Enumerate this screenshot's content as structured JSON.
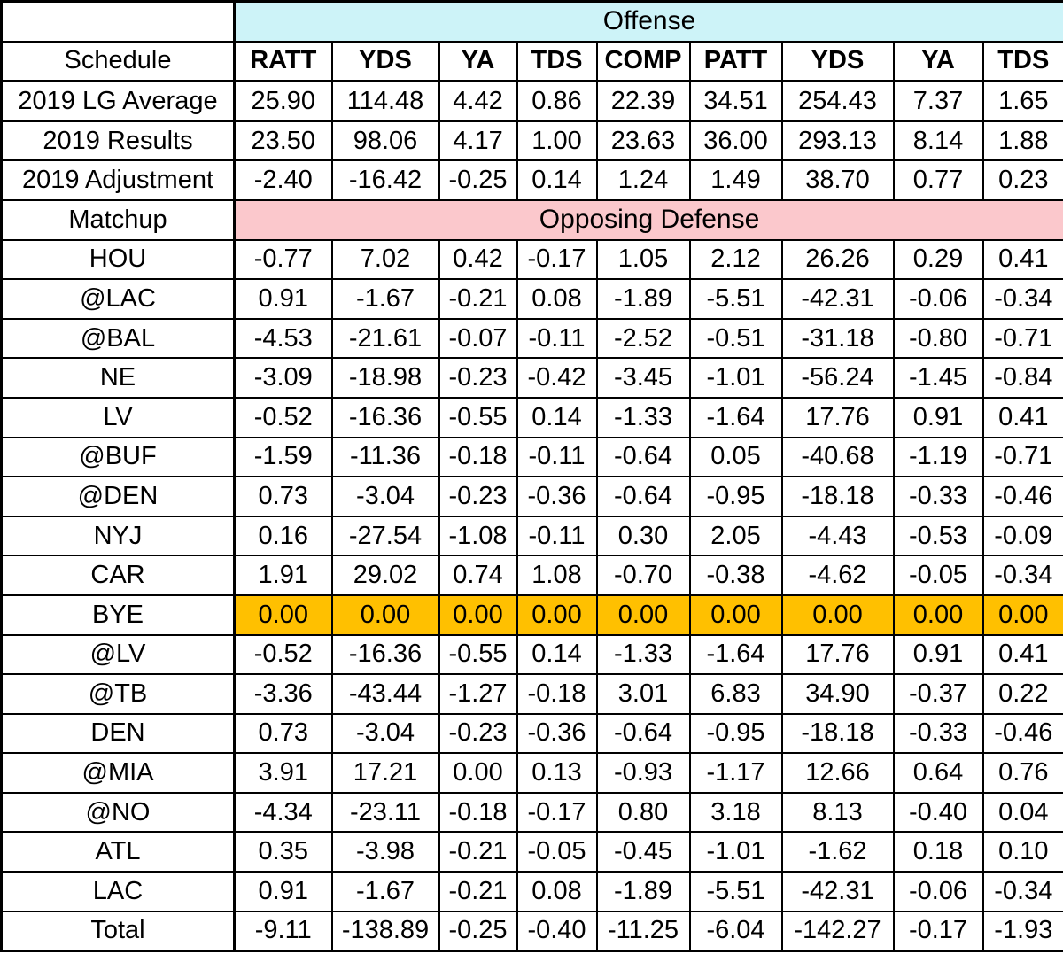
{
  "chart_data": {
    "type": "table",
    "title": "Offense",
    "corner_label": "Schedule",
    "column_headers": [
      "RATT",
      "YDS",
      "YA",
      "TDS",
      "COMP",
      "PATT",
      "YDS",
      "YA",
      "TDS"
    ],
    "baseline_rows": [
      {
        "label": "2019 LG Average",
        "values": [
          "25.90",
          "114.48",
          "4.42",
          "0.86",
          "22.39",
          "34.51",
          "254.43",
          "7.37",
          "1.65"
        ]
      },
      {
        "label": "2019 Results",
        "values": [
          "23.50",
          "98.06",
          "4.17",
          "1.00",
          "23.63",
          "36.00",
          "293.13",
          "8.14",
          "1.88"
        ]
      },
      {
        "label": "2019 Adjustment",
        "values": [
          "-2.40",
          "-16.42",
          "-0.25",
          "0.14",
          "1.24",
          "1.49",
          "38.70",
          "0.77",
          "0.23"
        ]
      }
    ],
    "section_label": "Matchup",
    "section_header": "Opposing Defense",
    "matchup_rows": [
      {
        "label": "HOU",
        "values": [
          "-0.77",
          "7.02",
          "0.42",
          "-0.17",
          "1.05",
          "2.12",
          "26.26",
          "0.29",
          "0.41"
        ]
      },
      {
        "label": "@LAC",
        "values": [
          "0.91",
          "-1.67",
          "-0.21",
          "0.08",
          "-1.89",
          "-5.51",
          "-42.31",
          "-0.06",
          "-0.34"
        ]
      },
      {
        "label": "@BAL",
        "values": [
          "-4.53",
          "-21.61",
          "-0.07",
          "-0.11",
          "-2.52",
          "-0.51",
          "-31.18",
          "-0.80",
          "-0.71"
        ]
      },
      {
        "label": "NE",
        "values": [
          "-3.09",
          "-18.98",
          "-0.23",
          "-0.42",
          "-3.45",
          "-1.01",
          "-56.24",
          "-1.45",
          "-0.84"
        ]
      },
      {
        "label": "LV",
        "values": [
          "-0.52",
          "-16.36",
          "-0.55",
          "0.14",
          "-1.33",
          "-1.64",
          "17.76",
          "0.91",
          "0.41"
        ]
      },
      {
        "label": "@BUF",
        "values": [
          "-1.59",
          "-11.36",
          "-0.18",
          "-0.11",
          "-0.64",
          "0.05",
          "-40.68",
          "-1.19",
          "-0.71"
        ]
      },
      {
        "label": "@DEN",
        "values": [
          "0.73",
          "-3.04",
          "-0.23",
          "-0.36",
          "-0.64",
          "-0.95",
          "-18.18",
          "-0.33",
          "-0.46"
        ]
      },
      {
        "label": "NYJ",
        "values": [
          "0.16",
          "-27.54",
          "-1.08",
          "-0.11",
          "0.30",
          "2.05",
          "-4.43",
          "-0.53",
          "-0.09"
        ]
      },
      {
        "label": "CAR",
        "values": [
          "1.91",
          "29.02",
          "0.74",
          "1.08",
          "-0.70",
          "-0.38",
          "-4.62",
          "-0.05",
          "-0.34"
        ]
      },
      {
        "label": "BYE",
        "highlight": true,
        "values": [
          "0.00",
          "0.00",
          "0.00",
          "0.00",
          "0.00",
          "0.00",
          "0.00",
          "0.00",
          "0.00"
        ]
      },
      {
        "label": "@LV",
        "values": [
          "-0.52",
          "-16.36",
          "-0.55",
          "0.14",
          "-1.33",
          "-1.64",
          "17.76",
          "0.91",
          "0.41"
        ]
      },
      {
        "label": "@TB",
        "values": [
          "-3.36",
          "-43.44",
          "-1.27",
          "-0.18",
          "3.01",
          "6.83",
          "34.90",
          "-0.37",
          "0.22"
        ]
      },
      {
        "label": "DEN",
        "values": [
          "0.73",
          "-3.04",
          "-0.23",
          "-0.36",
          "-0.64",
          "-0.95",
          "-18.18",
          "-0.33",
          "-0.46"
        ]
      },
      {
        "label": "@MIA",
        "values": [
          "3.91",
          "17.21",
          "0.00",
          "0.13",
          "-0.93",
          "-1.17",
          "12.66",
          "0.64",
          "0.76"
        ]
      },
      {
        "label": "@NO",
        "values": [
          "-4.34",
          "-23.11",
          "-0.18",
          "-0.17",
          "0.80",
          "3.18",
          "8.13",
          "-0.40",
          "0.04"
        ]
      },
      {
        "label": "ATL",
        "values": [
          "0.35",
          "-3.98",
          "-0.21",
          "-0.05",
          "-0.45",
          "-1.01",
          "-1.62",
          "0.18",
          "0.10"
        ]
      },
      {
        "label": "LAC",
        "values": [
          "0.91",
          "-1.67",
          "-0.21",
          "0.08",
          "-1.89",
          "-5.51",
          "-42.31",
          "-0.06",
          "-0.34"
        ]
      }
    ],
    "total_row": {
      "label": "Total",
      "values": [
        "-9.11",
        "-138.89",
        "-0.25",
        "-0.40",
        "-11.25",
        "-6.04",
        "-142.27",
        "-0.17",
        "-1.93"
      ]
    },
    "colors": {
      "offense_header_bg": "#cdf3f8",
      "defense_header_bg": "#fbc8cc",
      "bye_row_bg": "#ffc000",
      "grid": "#000000"
    }
  }
}
